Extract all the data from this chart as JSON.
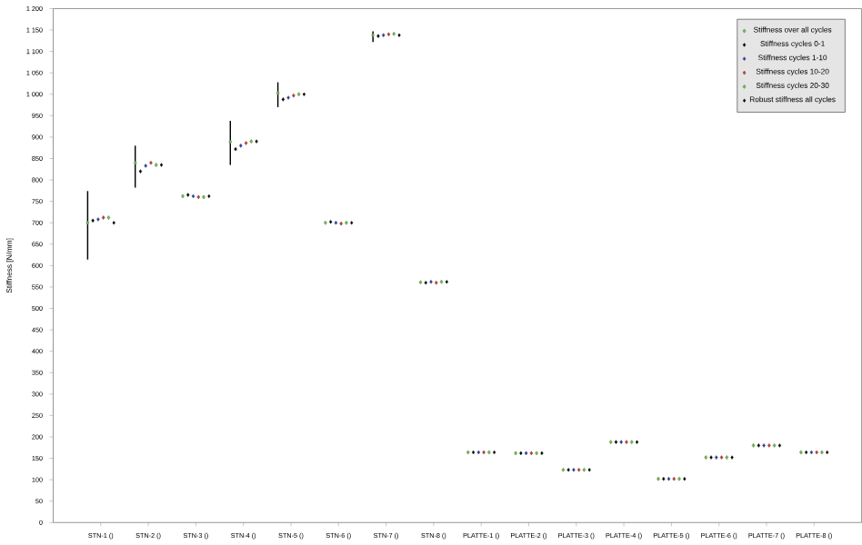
{
  "chart_data": {
    "type": "scatter",
    "ylabel": "Stiffness [N/mm]",
    "categories": [
      "STN-1 ()",
      "STN-2 ()",
      "STN-3 ()",
      "STN-4 ()",
      "STN-5 ()",
      "STN-6 ()",
      "STN-7 ()",
      "STN-8 ()",
      "PLATTE-1 ()",
      "PLATTE-2 ()",
      "PLATTE-3 ()",
      "PLATTE-4 ()",
      "PLATTE-5 ()",
      "PLATTE-6 ()",
      "PLATTE-7 ()",
      "PLATTE-8 ()"
    ],
    "series": [
      {
        "name": "Stiffness over all cycles",
        "color": "#66cc33",
        "values": [
          700,
          840,
          762,
          889,
          1003,
          700,
          1138,
          561,
          164,
          162,
          123,
          188,
          102,
          152,
          180,
          164
        ],
        "errors": [
          [
            614,
            774
          ],
          [
            782,
            880
          ],
          null,
          [
            835,
            938
          ],
          [
            970,
            1028
          ],
          null,
          [
            1122,
            1147
          ],
          null,
          null,
          null,
          null,
          null,
          null,
          null,
          null,
          null
        ]
      },
      {
        "name": "Stiffness cycles 0-1",
        "color": "#000000",
        "values": [
          705,
          820,
          765,
          872,
          988,
          702,
          1136,
          560,
          164,
          162,
          123,
          188,
          102,
          152,
          180,
          164
        ]
      },
      {
        "name": "Stiffness cycles 1-10",
        "color": "#1f3fbf",
        "values": [
          708,
          833,
          762,
          880,
          992,
          700,
          1138,
          562,
          164,
          162,
          123,
          188,
          102,
          152,
          180,
          164
        ]
      },
      {
        "name": "Stiffness cycles 10-20",
        "color": "#e03030",
        "values": [
          712,
          840,
          760,
          886,
          997,
          698,
          1140,
          560,
          164,
          162,
          123,
          188,
          102,
          152,
          180,
          164
        ]
      },
      {
        "name": "Stiffness cycles 20-30",
        "color": "#66cc33",
        "values": [
          712,
          835,
          760,
          890,
          1000,
          700,
          1141,
          562,
          164,
          162,
          123,
          188,
          102,
          152,
          180,
          164
        ]
      },
      {
        "name": "Robust stiffness all cycles",
        "color": "#000000",
        "values": [
          700,
          835,
          762,
          890,
          1000,
          700,
          1138,
          562,
          164,
          162,
          123,
          188,
          102,
          152,
          180,
          164
        ]
      }
    ],
    "ylim": [
      0,
      1200
    ],
    "yticks": [
      0,
      50,
      100,
      150,
      200,
      250,
      300,
      350,
      400,
      450,
      500,
      550,
      600,
      650,
      700,
      750,
      800,
      850,
      900,
      950,
      {
        "value": 1000,
        "label": "1 000"
      },
      {
        "value": 1050,
        "label": "1 050"
      },
      {
        "value": 1100,
        "label": "1 100"
      },
      {
        "value": 1150,
        "label": "1 150"
      },
      {
        "value": 1200,
        "label": "1 200"
      }
    ],
    "marker": "diamond",
    "grid": false,
    "legend": "top right"
  }
}
